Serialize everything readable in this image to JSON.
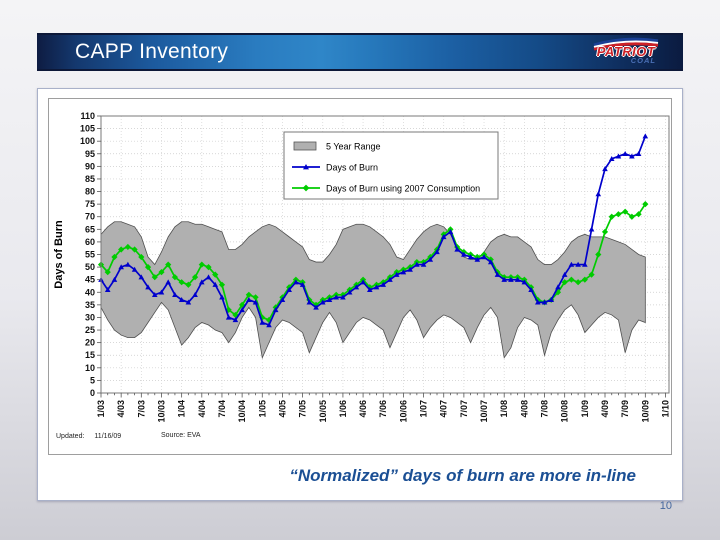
{
  "slide": {
    "title": "CAPP Inventory",
    "caption": "“Normalized” days of burn are more in-line",
    "updated_label": "Updated:",
    "updated_value": "11/16/09",
    "source_label": "Source:",
    "source_value": "EVA",
    "page_number": "10"
  },
  "logo": {
    "line1": "PATRIOT",
    "line2": "COAL"
  },
  "chart_data": {
    "type": "line",
    "title": "",
    "xlabel": "",
    "ylabel": "Days of Burn",
    "ylim": [
      0,
      110
    ],
    "ytick_step": 5,
    "grid": true,
    "legend_position": "upper-center",
    "x_tick_labels": [
      "1/03",
      "4/03",
      "7/03",
      "10/03",
      "1/04",
      "4/04",
      "7/04",
      "10/04",
      "1/05",
      "4/05",
      "7/05",
      "10/05",
      "1/06",
      "4/06",
      "7/06",
      "10/06",
      "1/07",
      "4/07",
      "7/07",
      "10/07",
      "1/08",
      "4/08",
      "7/08",
      "10/08",
      "1/09",
      "4/09",
      "7/09",
      "10/09",
      "1/10"
    ],
    "x_start_month": "1/03",
    "x_interval": "monthly",
    "legend": [
      {
        "label": "5 Year Range",
        "type": "band",
        "color": "#b0b0b0"
      },
      {
        "label": "Days of Burn",
        "type": "line",
        "marker": "triangle",
        "color": "#0000cc"
      },
      {
        "label": "Days of Burn using 2007 Consumption",
        "type": "line",
        "marker": "diamond",
        "color": "#00cc00"
      }
    ],
    "band": {
      "name": "5 Year Range",
      "color": "#b0b0b0",
      "edge_color": "#4f4f4f",
      "upper": [
        63,
        66,
        68,
        68,
        67,
        66,
        62,
        54,
        51,
        56,
        62,
        66,
        68,
        68,
        67,
        67,
        66,
        65,
        64,
        57,
        57,
        59,
        62,
        64,
        66,
        67,
        66,
        64,
        62,
        60,
        58,
        53,
        52,
        52,
        55,
        59,
        65,
        66,
        67,
        67,
        66,
        64,
        62,
        59,
        54,
        53,
        57,
        61,
        64,
        66,
        67,
        66,
        63,
        58,
        54,
        53,
        53,
        56,
        60,
        62,
        63,
        62,
        62,
        60,
        58,
        53,
        51,
        51,
        53,
        56,
        60,
        62,
        63,
        62,
        62,
        62,
        61,
        60,
        59,
        57,
        55,
        54
      ],
      "lower": [
        34,
        29,
        25,
        23,
        22,
        22,
        24,
        28,
        32,
        36,
        33,
        26,
        19,
        22,
        26,
        28,
        27,
        25,
        24,
        20,
        24,
        30,
        34,
        30,
        14,
        20,
        26,
        29,
        28,
        26,
        24,
        16,
        22,
        28,
        32,
        28,
        20,
        24,
        28,
        30,
        29,
        27,
        25,
        18,
        24,
        30,
        33,
        29,
        22,
        26,
        29,
        31,
        30,
        28,
        26,
        20,
        26,
        31,
        34,
        30,
        14,
        18,
        26,
        30,
        29,
        27,
        15,
        24,
        29,
        33,
        35,
        31,
        24,
        27,
        30,
        32,
        31,
        29,
        16,
        25,
        29,
        28
      ]
    },
    "series": [
      {
        "name": "Days of Burn",
        "color": "#0000cc",
        "marker": "triangle",
        "values": [
          45,
          41,
          45,
          50,
          51,
          49,
          46,
          42,
          39,
          40,
          44,
          39,
          37,
          36,
          39,
          44,
          46,
          43,
          38,
          30,
          29,
          33,
          37,
          36,
          28,
          27,
          33,
          37,
          41,
          44,
          43,
          36,
          34,
          36,
          37,
          38,
          38,
          40,
          42,
          44,
          41,
          42,
          43,
          45,
          47,
          48,
          49,
          51,
          51,
          53,
          56,
          62,
          64,
          57,
          55,
          54,
          53,
          54,
          52,
          47,
          45,
          45,
          45,
          44,
          41,
          36,
          36,
          37,
          42,
          47,
          51,
          51,
          51,
          65,
          79,
          89,
          93,
          94,
          95,
          94,
          95,
          102
        ]
      },
      {
        "name": "Days of Burn using 2007 Consumption",
        "color": "#00cc00",
        "marker": "diamond",
        "values": [
          51,
          48,
          54,
          57,
          58,
          57,
          54,
          50,
          46,
          48,
          51,
          46,
          44,
          43,
          46,
          51,
          50,
          47,
          43,
          33,
          31,
          35,
          39,
          38,
          30,
          29,
          34,
          38,
          42,
          45,
          44,
          37,
          35,
          37,
          38,
          39,
          39,
          41,
          43,
          45,
          42,
          43,
          44,
          46,
          48,
          49,
          50,
          52,
          52,
          54,
          57,
          63,
          65,
          58,
          56,
          55,
          54,
          55,
          53,
          48,
          46,
          46,
          46,
          45,
          42,
          37,
          36,
          37,
          40,
          44,
          45,
          44,
          45,
          47,
          55,
          64,
          70,
          71,
          72,
          70,
          71,
          75
        ]
      }
    ]
  }
}
